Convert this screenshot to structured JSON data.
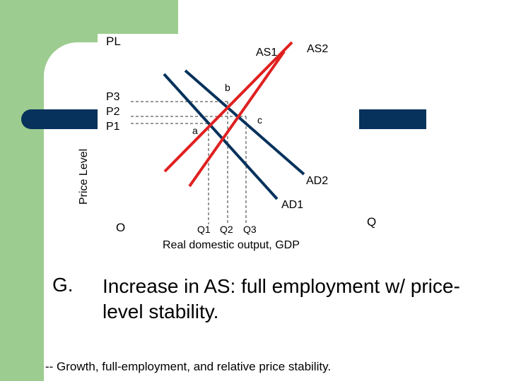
{
  "axis": {
    "y_title": "Price Level",
    "y_symbol": "PL",
    "origin": "O",
    "x_title": "Real domestic output, GDP",
    "x_symbol": "Q",
    "price_levels": [
      "P3",
      "P2",
      "P1"
    ],
    "quantities": [
      "Q1",
      "Q2",
      "Q3"
    ]
  },
  "curves": {
    "as1": "AS1",
    "as2": "AS2",
    "ad1": "AD1",
    "ad2": "AD2"
  },
  "points": {
    "a": "a",
    "b": "b",
    "c": "c"
  },
  "slide": {
    "letter": "G.",
    "heading": "Increase in AS: full employment w/ price-level stability.",
    "footnote": "-- Growth, full-employment, and relative price stability."
  },
  "colors": {
    "supply": "#e02020",
    "demand": "#06325c",
    "accent_green": "#9ccc8f"
  }
}
